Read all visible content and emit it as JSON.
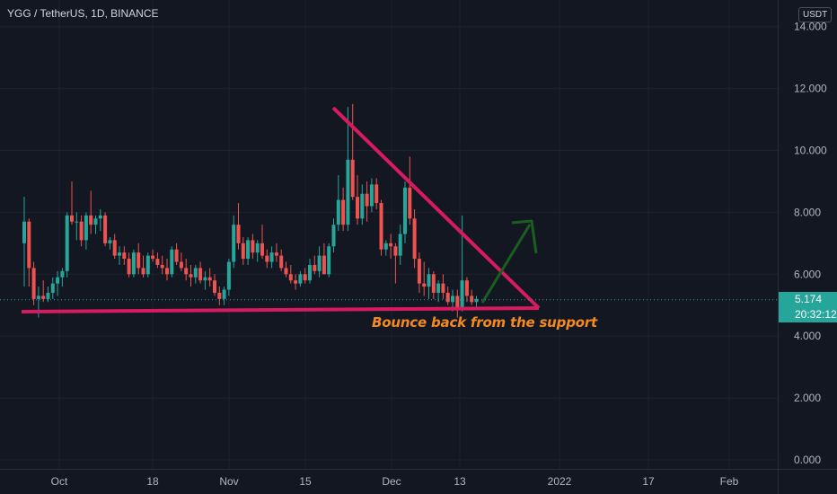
{
  "header": {
    "title": "YGG / TetherUS, 1D, BINANCE",
    "currency": "USDT"
  },
  "price_tag": {
    "price": "5.174",
    "countdown": "20:32:12"
  },
  "annotation": "Bounce back from the support",
  "colors": {
    "up": "#26a69a",
    "down": "#ef5350",
    "lines": "#d81b60",
    "arrow": "#1b5e20",
    "text": "#f5891f"
  },
  "chart_data": {
    "type": "candlestick",
    "x_ticks": [
      "Oct",
      "18",
      "Nov",
      "15",
      "Dec",
      "13",
      "2022",
      "17",
      "Feb"
    ],
    "y_ticks": [
      "0.000",
      "2.000",
      "4.000",
      "6.000",
      "8.000",
      "10.000",
      "12.000",
      "14.000"
    ],
    "ylim": [
      0,
      14.3
    ],
    "last_price": 5.174,
    "candles": [
      [
        7.0,
        8.5,
        5.6,
        7.7
      ],
      [
        7.7,
        7.8,
        5.6,
        6.2
      ],
      [
        6.2,
        6.4,
        5.0,
        5.2
      ],
      [
        5.2,
        5.6,
        4.6,
        5.3
      ],
      [
        5.3,
        5.8,
        5.1,
        5.2
      ],
      [
        5.2,
        5.6,
        5.1,
        5.4
      ],
      [
        5.4,
        5.9,
        5.2,
        5.7
      ],
      [
        5.7,
        6.1,
        5.3,
        5.9
      ],
      [
        5.9,
        6.2,
        5.6,
        6.1
      ],
      [
        6.1,
        8.0,
        5.9,
        7.9
      ],
      [
        7.9,
        9.0,
        7.6,
        7.7
      ],
      [
        7.7,
        8.0,
        7.1,
        7.7
      ],
      [
        7.7,
        7.9,
        6.9,
        7.1
      ],
      [
        7.1,
        8.0,
        6.8,
        7.9
      ],
      [
        7.9,
        8.7,
        7.3,
        7.6
      ],
      [
        7.6,
        7.9,
        7.3,
        7.8
      ],
      [
        7.8,
        8.1,
        7.4,
        7.9
      ],
      [
        7.9,
        8.0,
        6.9,
        7.0
      ],
      [
        7.0,
        7.2,
        6.8,
        7.1
      ],
      [
        7.1,
        7.3,
        6.5,
        6.6
      ],
      [
        6.6,
        6.9,
        6.3,
        6.7
      ],
      [
        6.7,
        6.9,
        6.3,
        6.5
      ],
      [
        6.5,
        6.7,
        5.9,
        6.0
      ],
      [
        6.0,
        6.8,
        5.9,
        6.7
      ],
      [
        6.7,
        7.0,
        6.0,
        6.2
      ],
      [
        6.2,
        6.6,
        5.9,
        6.0
      ],
      [
        6.0,
        6.7,
        5.9,
        6.6
      ],
      [
        6.6,
        6.8,
        6.4,
        6.5
      ],
      [
        6.5,
        6.7,
        6.2,
        6.3
      ],
      [
        6.3,
        6.6,
        6.0,
        6.2
      ],
      [
        6.2,
        6.5,
        5.8,
        6.0
      ],
      [
        6.0,
        6.9,
        5.9,
        6.8
      ],
      [
        6.8,
        7.0,
        6.3,
        6.4
      ],
      [
        6.4,
        6.7,
        6.1,
        6.2
      ],
      [
        6.2,
        6.5,
        5.8,
        6.0
      ],
      [
        6.0,
        6.3,
        5.6,
        5.9
      ],
      [
        5.9,
        6.3,
        5.7,
        6.2
      ],
      [
        6.2,
        6.4,
        5.7,
        5.8
      ],
      [
        5.8,
        6.1,
        5.5,
        5.9
      ],
      [
        5.9,
        6.2,
        5.6,
        5.8
      ],
      [
        5.8,
        6.0,
        5.3,
        5.4
      ],
      [
        5.4,
        5.6,
        5.0,
        5.2
      ],
      [
        5.2,
        5.6,
        5.0,
        5.5
      ],
      [
        5.5,
        6.5,
        5.3,
        6.4
      ],
      [
        6.4,
        7.9,
        6.2,
        7.6
      ],
      [
        7.6,
        8.3,
        6.8,
        7.0
      ],
      [
        7.0,
        7.2,
        6.3,
        6.5
      ],
      [
        6.5,
        7.2,
        6.3,
        7.1
      ],
      [
        7.1,
        7.3,
        6.5,
        6.7
      ],
      [
        6.7,
        7.1,
        6.4,
        7.0
      ],
      [
        7.0,
        7.6,
        6.5,
        6.6
      ],
      [
        6.6,
        6.8,
        6.2,
        6.4
      ],
      [
        6.4,
        6.9,
        6.2,
        6.7
      ],
      [
        6.7,
        7.0,
        6.4,
        6.6
      ],
      [
        6.6,
        6.8,
        6.1,
        6.2
      ],
      [
        6.2,
        6.4,
        5.9,
        6.0
      ],
      [
        6.0,
        6.3,
        5.7,
        5.8
      ],
      [
        5.8,
        6.0,
        5.5,
        5.7
      ],
      [
        5.7,
        6.1,
        5.6,
        6.0
      ],
      [
        6.0,
        6.2,
        5.7,
        5.8
      ],
      [
        5.8,
        6.5,
        5.7,
        6.3
      ],
      [
        6.3,
        6.6,
        6.0,
        6.1
      ],
      [
        6.1,
        6.9,
        5.9,
        6.6
      ],
      [
        6.6,
        7.0,
        6.0,
        6.0
      ],
      [
        6.0,
        7.0,
        5.9,
        6.9
      ],
      [
        6.9,
        7.8,
        6.7,
        7.6
      ],
      [
        7.6,
        9.2,
        7.4,
        8.4
      ],
      [
        8.4,
        8.8,
        7.4,
        7.6
      ],
      [
        7.6,
        11.4,
        7.4,
        9.7
      ],
      [
        9.7,
        11.5,
        8.4,
        8.5
      ],
      [
        8.5,
        9.2,
        7.6,
        7.8
      ],
      [
        7.8,
        8.9,
        7.6,
        8.6
      ],
      [
        8.6,
        9.0,
        7.7,
        8.2
      ],
      [
        8.2,
        9.1,
        8.0,
        8.9
      ],
      [
        8.9,
        9.1,
        8.1,
        8.3
      ],
      [
        8.3,
        8.4,
        6.6,
        6.8
      ],
      [
        6.8,
        7.1,
        6.6,
        7.0
      ],
      [
        7.0,
        7.3,
        6.5,
        6.9
      ],
      [
        6.9,
        7.0,
        5.7,
        6.6
      ],
      [
        6.6,
        7.6,
        6.3,
        7.3
      ],
      [
        7.3,
        9.0,
        7.0,
        8.8
      ],
      [
        8.8,
        9.8,
        7.6,
        7.8
      ],
      [
        7.8,
        8.1,
        6.2,
        6.5
      ],
      [
        6.5,
        6.7,
        5.4,
        5.7
      ],
      [
        5.7,
        6.4,
        5.3,
        5.6
      ],
      [
        5.6,
        6.2,
        5.2,
        6.0
      ],
      [
        6.0,
        6.1,
        5.2,
        5.4
      ],
      [
        5.4,
        5.8,
        5.1,
        5.7
      ],
      [
        5.7,
        6.0,
        5.2,
        5.4
      ],
      [
        5.4,
        5.6,
        5.0,
        5.1
      ],
      [
        5.1,
        5.5,
        4.8,
        5.3
      ],
      [
        5.3,
        5.5,
        4.6,
        4.9
      ],
      [
        4.9,
        7.9,
        4.8,
        5.8
      ],
      [
        5.8,
        5.9,
        5.1,
        5.3
      ],
      [
        5.3,
        5.5,
        5.0,
        5.1
      ],
      [
        5.1,
        5.3,
        4.9,
        5.2
      ]
    ]
  }
}
